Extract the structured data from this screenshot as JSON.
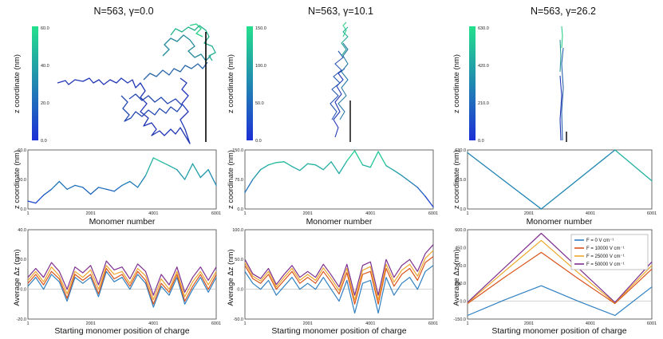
{
  "titles": [
    "N=563, γ=0.0",
    "N=563, γ=10.1",
    "N=563, γ=26.2"
  ],
  "labels": {
    "z_nm": "z coordinate (nm)",
    "monomer": "Monomer number",
    "avg_dz": "Average Δz (nm)",
    "start_pos": "Starting monomer position of charge"
  },
  "colors": {
    "chain_low": "#1d2fd6",
    "chain_high": "#24e08c",
    "series": [
      "#2f7fc1",
      "#d9541d",
      "#eca72c",
      "#7d2f8e"
    ]
  },
  "chart_data": [
    {
      "type": "colorbar",
      "panel": "top-1",
      "range": [
        0,
        60
      ],
      "ticks": [
        "0.0",
        "20.0",
        "40.0",
        "60.0"
      ]
    },
    {
      "type": "colorbar",
      "panel": "top-2",
      "range": [
        0,
        150
      ],
      "ticks": [
        "0.0",
        "50.0",
        "100.0",
        "150.0"
      ]
    },
    {
      "type": "colorbar",
      "panel": "top-3",
      "range": [
        0,
        630
      ],
      "ticks": [
        "0.0",
        "210.0",
        "420.0",
        "630.0"
      ]
    },
    {
      "type": "line",
      "panel": "mid-1",
      "ylabel": "z coordinate (nm)",
      "xlabel": "Monomer number",
      "xlim": [
        1,
        6001
      ],
      "ylim": [
        0,
        60
      ],
      "yticks": [
        "0.0",
        "30.0",
        "60.0"
      ],
      "xticks": [
        "1",
        "2001",
        "4001",
        "6001"
      ],
      "x": [
        1,
        250,
        500,
        750,
        1000,
        1250,
        1500,
        1750,
        2000,
        2250,
        2500,
        2750,
        3000,
        3250,
        3500,
        3750,
        4000,
        4250,
        4500,
        4750,
        5000,
        5250,
        5500,
        5750,
        6001
      ],
      "y": [
        8,
        6,
        14,
        20,
        28,
        20,
        24,
        22,
        15,
        22,
        20,
        18,
        24,
        28,
        22,
        34,
        52,
        48,
        44,
        40,
        30,
        46,
        32,
        40,
        24
      ]
    },
    {
      "type": "line",
      "panel": "mid-2",
      "ylabel": "z coordinate (nm)",
      "xlabel": "Monomer number",
      "xlim": [
        1,
        6001
      ],
      "ylim": [
        0,
        150
      ],
      "yticks": [
        "0.0",
        "75.0",
        "150.0"
      ],
      "xticks": [
        "1",
        "2001",
        "4001",
        "6001"
      ],
      "x": [
        1,
        250,
        500,
        750,
        1000,
        1250,
        1500,
        1750,
        2000,
        2250,
        2500,
        2750,
        3000,
        3250,
        3500,
        3750,
        4000,
        4250,
        4500,
        4750,
        5000,
        5250,
        5500,
        5750,
        6001
      ],
      "y": [
        42,
        75,
        100,
        112,
        118,
        120,
        108,
        98,
        115,
        112,
        100,
        120,
        90,
        122,
        148,
        112,
        106,
        146,
        110,
        98,
        85,
        70,
        55,
        32,
        5
      ]
    },
    {
      "type": "line",
      "panel": "mid-3",
      "ylabel": "z coordinate (nm)",
      "xlabel": "Monomer number",
      "xlim": [
        1,
        6001
      ],
      "ylim": [
        0,
        630
      ],
      "yticks": [
        "0.0",
        "315.0",
        "630.0"
      ],
      "xticks": [
        "1",
        "2001",
        "4001",
        "6001"
      ],
      "x": [
        1,
        2400,
        4800,
        6001
      ],
      "y": [
        600,
        0,
        630,
        300
      ]
    },
    {
      "type": "line",
      "panel": "bot-1",
      "ylabel": "Average Δz (nm)",
      "xlabel": "Starting monomer position of charge",
      "xlim": [
        1,
        6001
      ],
      "ylim": [
        -20,
        40
      ],
      "yticks": [
        "-20.0",
        "0.0",
        "20.0",
        "40.0"
      ],
      "xticks": [
        "1",
        "2001",
        "4001",
        "6001"
      ],
      "x": [
        1,
        250,
        500,
        750,
        1000,
        1250,
        1500,
        1750,
        2000,
        2250,
        2500,
        2750,
        3000,
        3250,
        3500,
        3750,
        4000,
        4250,
        4500,
        4750,
        5000,
        5250,
        5500,
        5750,
        6001
      ],
      "series": [
        {
          "name": "F = 0 V cm⁻¹",
          "values": [
            2,
            8,
            0,
            10,
            5,
            -8,
            8,
            4,
            8,
            -5,
            12,
            5,
            8,
            0,
            10,
            4,
            -12,
            2,
            -4,
            8,
            -10,
            0,
            8,
            -2,
            8
          ]
        },
        {
          "name": "F = 10000 V cm⁻¹",
          "values": [
            4,
            10,
            3,
            12,
            7,
            -6,
            10,
            6,
            10,
            -3,
            14,
            7,
            10,
            2,
            12,
            6,
            -10,
            4,
            -2,
            10,
            -8,
            2,
            10,
            0,
            10
          ]
        },
        {
          "name": "F = 25000 V cm⁻¹",
          "values": [
            6,
            12,
            5,
            15,
            9,
            -3,
            12,
            8,
            13,
            0,
            16,
            10,
            12,
            4,
            14,
            9,
            -7,
            7,
            0,
            12,
            -5,
            5,
            12,
            3,
            12
          ]
        },
        {
          "name": "F = 50000 V cm⁻¹",
          "values": [
            8,
            14,
            8,
            18,
            12,
            0,
            15,
            11,
            16,
            3,
            19,
            13,
            15,
            7,
            17,
            12,
            -4,
            10,
            3,
            15,
            -2,
            8,
            15,
            6,
            15
          ]
        }
      ]
    },
    {
      "type": "line",
      "panel": "bot-2",
      "ylabel": "Average Δz (nm)",
      "xlabel": "Starting monomer position of charge",
      "xlim": [
        1,
        6001
      ],
      "ylim": [
        -50,
        100
      ],
      "yticks": [
        "-50.0",
        "0.0",
        "50.0",
        "100.0"
      ],
      "xticks": [
        "1",
        "2001",
        "4001",
        "6001"
      ],
      "x": [
        1,
        250,
        500,
        750,
        1000,
        1250,
        1500,
        1750,
        2000,
        2250,
        2500,
        2750,
        3000,
        3250,
        3500,
        3750,
        4000,
        4250,
        4500,
        4750,
        5000,
        5250,
        5500,
        5750,
        6001
      ],
      "series": [
        {
          "name": "F = 0 V cm⁻¹",
          "values": [
            30,
            10,
            0,
            15,
            -10,
            5,
            20,
            0,
            10,
            0,
            20,
            0,
            -20,
            15,
            -40,
            10,
            15,
            -40,
            20,
            -10,
            10,
            20,
            0,
            30,
            40
          ]
        },
        {
          "name": "F = 10000 V cm⁻¹",
          "values": [
            40,
            18,
            10,
            25,
            0,
            15,
            30,
            10,
            20,
            10,
            30,
            12,
            -8,
            28,
            -25,
            25,
            30,
            -25,
            35,
            5,
            25,
            35,
            15,
            45,
            55
          ]
        },
        {
          "name": "F = 25000 V cm⁻¹",
          "values": [
            45,
            22,
            14,
            30,
            4,
            20,
            35,
            15,
            25,
            15,
            36,
            18,
            -2,
            35,
            -18,
            32,
            38,
            -18,
            42,
            12,
            32,
            42,
            22,
            52,
            65
          ]
        },
        {
          "name": "F = 50000 V cm⁻¹",
          "values": [
            50,
            26,
            18,
            35,
            8,
            25,
            40,
            20,
            30,
            20,
            42,
            24,
            4,
            42,
            -10,
            40,
            46,
            -10,
            50,
            20,
            40,
            50,
            30,
            60,
            75
          ]
        }
      ]
    },
    {
      "type": "line",
      "panel": "bot-3",
      "ylabel": "Average Δz (nm)",
      "xlabel": "Starting monomer position of charge",
      "xlim": [
        1,
        6001
      ],
      "ylim": [
        -150,
        600
      ],
      "yticks": [
        "-150.0",
        "0.0",
        "150.0",
        "300.0",
        "450.0",
        "600.0"
      ],
      "xticks": [
        "1",
        "2001",
        "4001",
        "6001"
      ],
      "x": [
        1,
        1200,
        2400,
        3600,
        4800,
        6001
      ],
      "series": [
        {
          "name": "F = 0 V cm⁻¹",
          "values": [
            -120,
            10,
            130,
            0,
            -120,
            120
          ]
        },
        {
          "name": "F = 10000 V cm⁻¹",
          "values": [
            -20,
            200,
            410,
            190,
            -20,
            270
          ]
        },
        {
          "name": "F = 25000 V cm⁻¹",
          "values": [
            -15,
            250,
            510,
            240,
            -15,
            300
          ]
        },
        {
          "name": "F = 50000 V cm⁻¹",
          "values": [
            -10,
            280,
            570,
            280,
            -10,
            330
          ]
        }
      ],
      "legend": "top-right"
    }
  ]
}
